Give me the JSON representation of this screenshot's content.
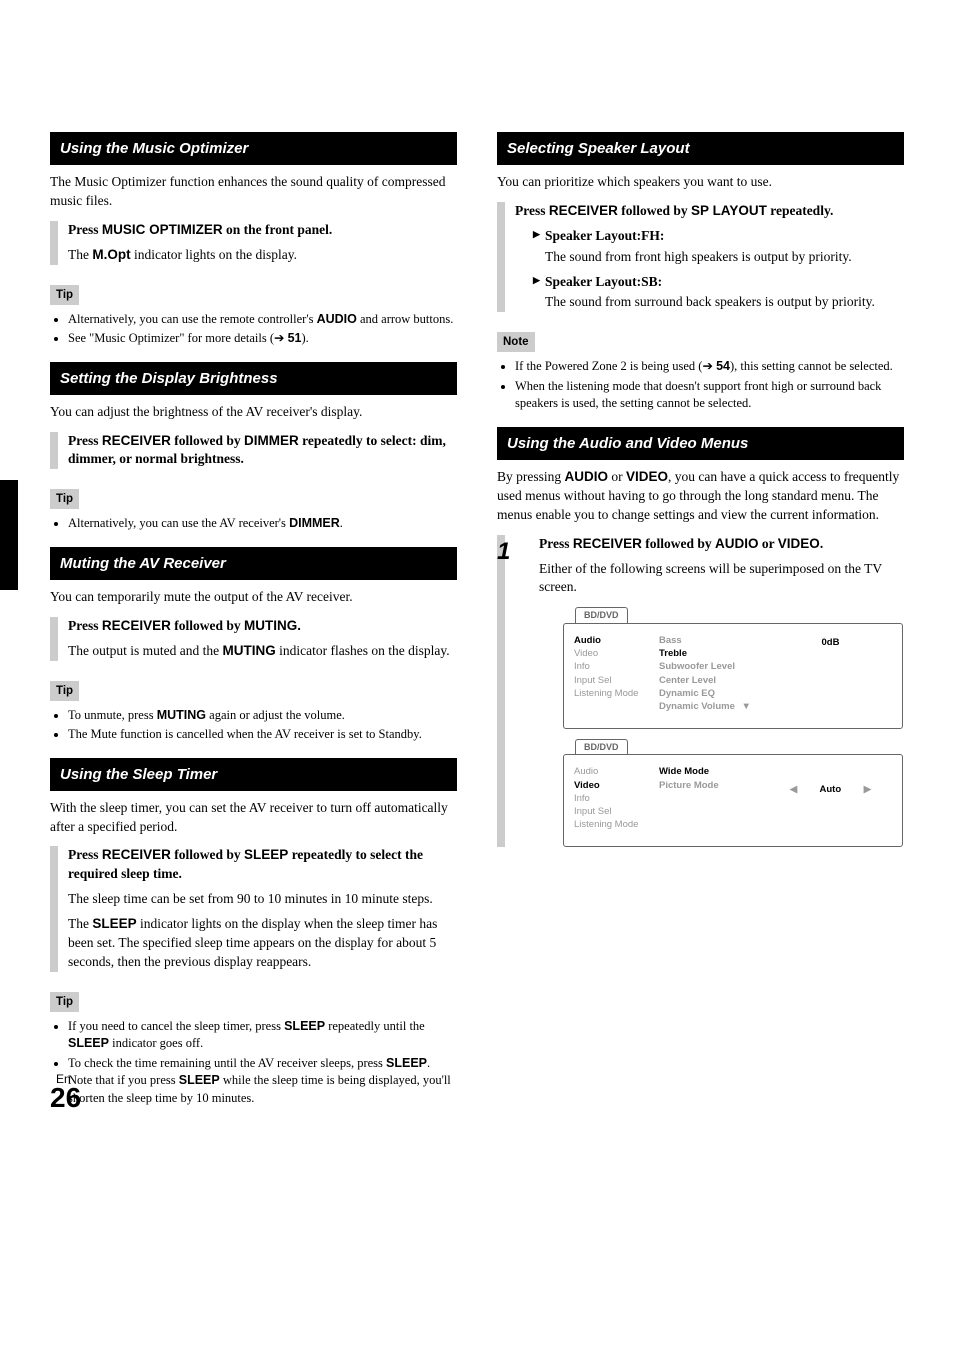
{
  "page": {
    "lang": "En",
    "number": "26"
  },
  "left": {
    "s1": {
      "title": "Using the Music Optimizer",
      "intro": "The Music Optimizer function enhances the sound quality of compressed music files.",
      "step_a": "Press ",
      "step_b": "MUSIC OPTIMIZER",
      "step_c": " on the front panel.",
      "step2a": "The ",
      "step2b": "M.Opt",
      "step2c": " indicator lights on the display.",
      "tip_label": "Tip",
      "tips": [
        {
          "pre": "Alternatively, you can use the remote controller's ",
          "b": "AUDIO",
          "post": " and arrow buttons."
        },
        {
          "pre": "See \"Music Optimizer\" for more details (",
          "arrow": "➔",
          "b": "51",
          "post": ")."
        }
      ]
    },
    "s2": {
      "title": "Setting the Display Brightness",
      "intro": "You can adjust the brightness of the AV receiver's display.",
      "step_a": "Press ",
      "step_b": "RECEIVER",
      "step_c": " followed by ",
      "step_d": "DIMMER",
      "step_e": " repeatedly to select: dim, dimmer, or normal brightness.",
      "tip_label": "Tip",
      "tips": [
        {
          "pre": "Alternatively, you can use the AV receiver's ",
          "b": "DIMMER",
          "post": "."
        }
      ]
    },
    "s3": {
      "title": "Muting the AV Receiver",
      "intro": "You can temporarily mute the output of the AV receiver.",
      "step_a": "Press ",
      "step_b": "RECEIVER",
      "step_c": " followed by ",
      "step_d": "MUTING.",
      "step2a": "The output is muted and the ",
      "step2b": "MUTING",
      "step2c": " indicator flashes on the display.",
      "tip_label": "Tip",
      "tips": [
        {
          "pre": "To unmute, press ",
          "b": "MUTING",
          "post": " again or adjust the volume."
        },
        {
          "pre": "The Mute function is cancelled when the AV receiver is set to Standby.",
          "b": "",
          "post": ""
        }
      ]
    },
    "s4": {
      "title": "Using the Sleep Timer",
      "intro": "With the sleep timer, you can set the AV receiver to turn off automatically after a specified period.",
      "step_a": "Press ",
      "step_b": "RECEIVER",
      "step_c": " followed by ",
      "step_d": "SLEEP",
      "step_e": " repeatedly to select the required sleep time.",
      "step2": "The sleep time can be set from 90 to 10 minutes in 10 minute steps.",
      "step3a": "The ",
      "step3b": "SLEEP",
      "step3c": " indicator lights on the display when the sleep timer has been set. The specified sleep time appears on the display for about 5 seconds, then the previous display reappears.",
      "tip_label": "Tip",
      "tips": [
        {
          "pre": "If you need to cancel the sleep timer, press ",
          "b": "SLEEP",
          "post": " repeatedly until the ",
          "b2": "SLEEP",
          "post2": " indicator goes off."
        },
        {
          "pre": "To check the time remaining until the AV receiver sleeps, press ",
          "b": "SLEEP",
          "post": ". Note that if you press ",
          "b2": "SLEEP",
          "post2": " while the sleep time is being displayed, you'll shorten the sleep time by 10 minutes."
        }
      ]
    }
  },
  "right": {
    "s5": {
      "title": "Selecting Speaker Layout",
      "intro": "You can prioritize which speakers you want to use.",
      "step_a": "Press ",
      "step_b": "RECEIVER",
      "step_c": " followed by ",
      "step_d": "SP LAYOUT",
      "step_e": " repeatedly.",
      "opt1_label": "Speaker Layout:FH",
      "opt1_desc": "The sound from front high speakers is output by priority.",
      "opt2_label": "Speaker Layout:SB",
      "opt2_desc": "The sound from surround back speakers is output by priority.",
      "note_label": "Note",
      "notes": [
        {
          "pre": "If the Powered Zone 2 is being used (",
          "arrow": "➔",
          "b": "54",
          "post": "), this setting cannot be selected."
        },
        {
          "pre": "When the listening mode that doesn't support front high or surround back speakers is used, the setting cannot be selected.",
          "b": "",
          "post": ""
        }
      ]
    },
    "s6": {
      "title": "Using the Audio and Video Menus",
      "intro_a": "By pressing ",
      "intro_b": "AUDIO",
      "intro_c": " or ",
      "intro_d": "VIDEO",
      "intro_e": ", you can have a quick access to frequently used menus without having to go through the long standard menu. The menus enable you to change settings and view the current information.",
      "step_num": "1",
      "step_a": "Press ",
      "step_b": "RECEIVER",
      "step_c": " followed by ",
      "step_d": "AUDIO",
      "step_e": " or ",
      "step_f": "VIDEO",
      "step_g": ".",
      "step2": "Either of the following screens will be superimposed on the TV screen."
    },
    "osd1": {
      "tab": "BD/DVD",
      "menu": [
        "Audio",
        "Video",
        "Info",
        "Input Sel",
        "Listening Mode"
      ],
      "menu_active_idx": 0,
      "opts": [
        "Bass",
        "Treble",
        "Subwoofer Level",
        "Center Level",
        "Dynamic EQ",
        "Dynamic Volume"
      ],
      "opts_active_idx": 1,
      "value": "0dB"
    },
    "osd2": {
      "tab": "BD/DVD",
      "menu": [
        "Audio",
        "Video",
        "Info",
        "Input Sel",
        "Listening Mode"
      ],
      "menu_active_idx": 1,
      "opts": [
        "Wide Mode",
        "Picture Mode"
      ],
      "opts_active_idx": 0,
      "value": "Auto"
    }
  }
}
